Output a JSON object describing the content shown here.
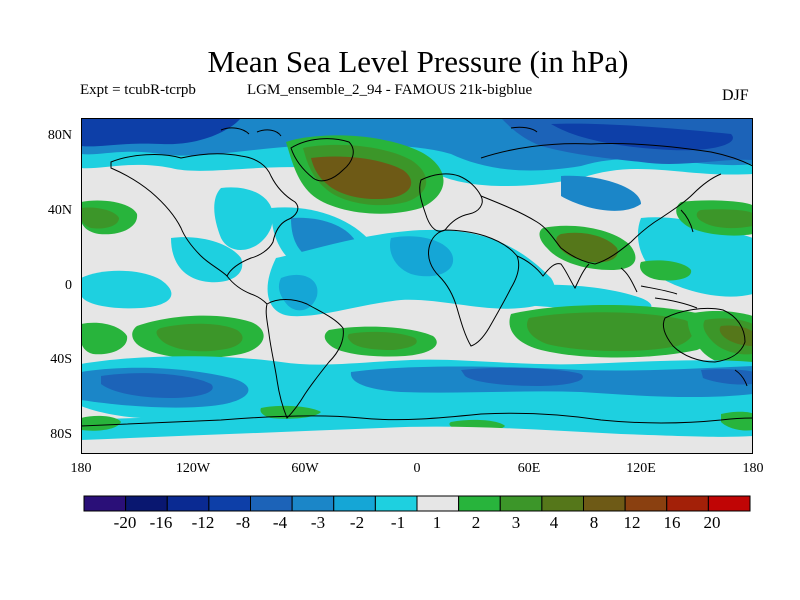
{
  "title": "Mean Sea Level Pressure (in hPa)",
  "experiment": "Expt = tcubR-tcrpb",
  "description": "LGM_ensemble_2_94 - FAMOUS 21k-bigblue",
  "season": "DJF",
  "lat_labels": [
    "80N",
    "40N",
    "0",
    "40S",
    "80S"
  ],
  "lon_labels": [
    "180",
    "120W",
    "60W",
    "0",
    "60E",
    "120E",
    "180"
  ],
  "colorbar": {
    "labels": [
      "-20",
      "-16",
      "-12",
      "-8",
      "-4",
      "-3",
      "-2",
      "-1",
      "1",
      "2",
      "3",
      "4",
      "8",
      "12",
      "16",
      "20"
    ],
    "colors": [
      "#2a0f78",
      "#091770",
      "#0a2a92",
      "#0d3fa8",
      "#1c63b8",
      "#1b86c8",
      "#15a6d6",
      "#1ed0e0",
      "#e6e6e6",
      "#28b43c",
      "#3c9629",
      "#55771a",
      "#6e5a16",
      "#8a4010",
      "#a32008",
      "#c00505"
    ]
  },
  "colors": {
    "land_outline": "#000000",
    "neutral": "#e6e6e6"
  }
}
